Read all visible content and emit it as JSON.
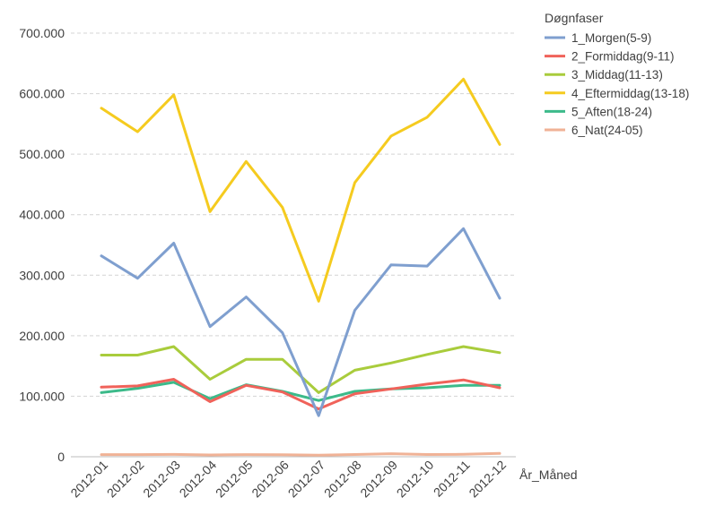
{
  "chart_data": {
    "type": "line",
    "xlabel": "År_Måned",
    "ylabel": "",
    "ylim": [
      0,
      700000
    ],
    "y_ticks": [
      0,
      100000,
      200000,
      300000,
      400000,
      500000,
      600000,
      700000
    ],
    "y_tick_labels": [
      "0",
      "100.000",
      "200.000",
      "300.000",
      "400.000",
      "500.000",
      "600.000",
      "700.000"
    ],
    "grid": true,
    "legend_position": "top-right",
    "legend_title": "Døgnfaser",
    "categories": [
      "2012-01",
      "2012-02",
      "2012-03",
      "2012-04",
      "2012-05",
      "2012-06",
      "2012-07",
      "2012-08",
      "2012-09",
      "2012-10",
      "2012-11",
      "2012-12"
    ],
    "series": [
      {
        "name": "1_Morgen(5-9)",
        "color": "#7f9fcf",
        "values": [
          332000,
          295000,
          353000,
          215000,
          264000,
          205000,
          68000,
          242000,
          317000,
          315000,
          377000,
          262000
        ]
      },
      {
        "name": "2_Formiddag(9-11)",
        "color": "#f0625a",
        "values": [
          115000,
          117000,
          128000,
          91000,
          118000,
          107000,
          79000,
          104000,
          112000,
          120000,
          127000,
          114000
        ]
      },
      {
        "name": "3_Middag(11-13)",
        "color": "#a9cc3c",
        "values": [
          168000,
          168000,
          182000,
          128000,
          161000,
          161000,
          106000,
          143000,
          155000,
          169000,
          182000,
          172000
        ]
      },
      {
        "name": "4_Eftermiddag(13-18)",
        "color": "#f5cb1f",
        "values": [
          576000,
          537000,
          598000,
          405000,
          488000,
          412000,
          257000,
          453000,
          530000,
          561000,
          624000,
          516000
        ]
      },
      {
        "name": "5_Aften(18-24)",
        "color": "#3cba8a",
        "values": [
          106000,
          113000,
          123000,
          96000,
          119000,
          108000,
          93000,
          108000,
          112000,
          114000,
          118000,
          118000
        ]
      },
      {
        "name": "6_Nat(24-05)",
        "color": "#f0b296",
        "values": [
          3500,
          3600,
          3800,
          3000,
          3500,
          3400,
          2600,
          3700,
          5000,
          3700,
          4000,
          5500
        ]
      }
    ]
  }
}
